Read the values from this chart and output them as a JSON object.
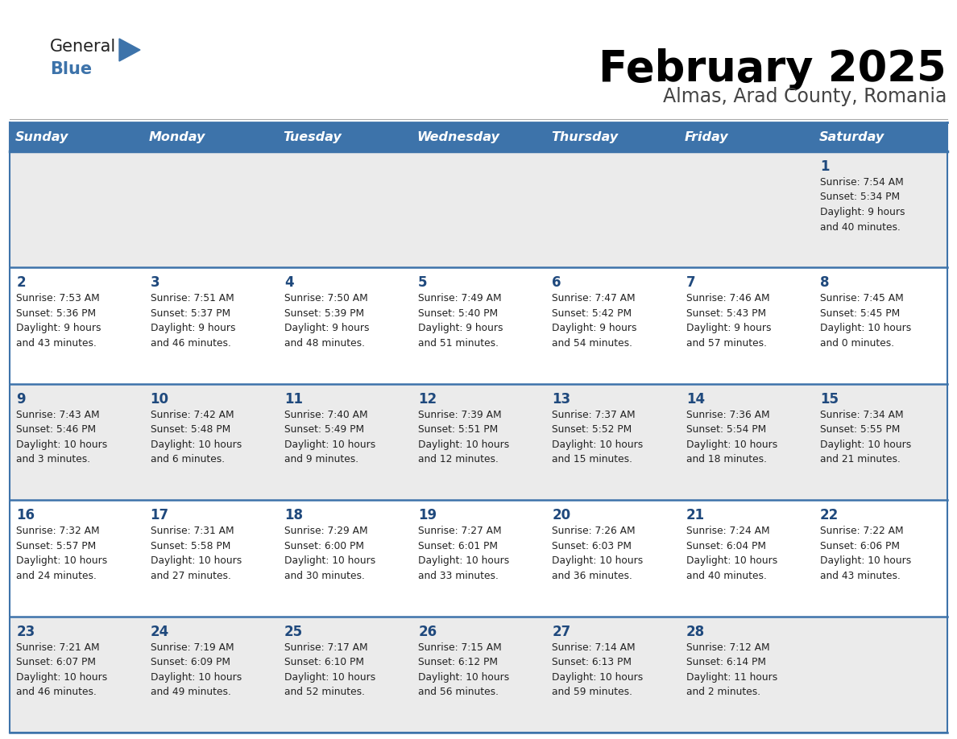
{
  "title": "February 2025",
  "subtitle": "Almas, Arad County, Romania",
  "header_bg": "#3D73AA",
  "header_text_color": "#FFFFFF",
  "day_names": [
    "Sunday",
    "Monday",
    "Tuesday",
    "Wednesday",
    "Thursday",
    "Friday",
    "Saturday"
  ],
  "row_bg_colors": [
    "#EBEBEB",
    "#FFFFFF",
    "#EBEBEB",
    "#FFFFFF",
    "#EBEBEB"
  ],
  "cell_border_color": "#3D73AA",
  "title_color": "#000000",
  "subtitle_color": "#444444",
  "day_number_color": "#1F497D",
  "info_color": "#222222",
  "logo_general_color": "#222222",
  "logo_blue_color": "#3D73AA",
  "weeks": [
    {
      "days": [
        {
          "date": null,
          "info": null
        },
        {
          "date": null,
          "info": null
        },
        {
          "date": null,
          "info": null
        },
        {
          "date": null,
          "info": null
        },
        {
          "date": null,
          "info": null
        },
        {
          "date": null,
          "info": null
        },
        {
          "date": 1,
          "info": "Sunrise: 7:54 AM\nSunset: 5:34 PM\nDaylight: 9 hours\nand 40 minutes."
        }
      ]
    },
    {
      "days": [
        {
          "date": 2,
          "info": "Sunrise: 7:53 AM\nSunset: 5:36 PM\nDaylight: 9 hours\nand 43 minutes."
        },
        {
          "date": 3,
          "info": "Sunrise: 7:51 AM\nSunset: 5:37 PM\nDaylight: 9 hours\nand 46 minutes."
        },
        {
          "date": 4,
          "info": "Sunrise: 7:50 AM\nSunset: 5:39 PM\nDaylight: 9 hours\nand 48 minutes."
        },
        {
          "date": 5,
          "info": "Sunrise: 7:49 AM\nSunset: 5:40 PM\nDaylight: 9 hours\nand 51 minutes."
        },
        {
          "date": 6,
          "info": "Sunrise: 7:47 AM\nSunset: 5:42 PM\nDaylight: 9 hours\nand 54 minutes."
        },
        {
          "date": 7,
          "info": "Sunrise: 7:46 AM\nSunset: 5:43 PM\nDaylight: 9 hours\nand 57 minutes."
        },
        {
          "date": 8,
          "info": "Sunrise: 7:45 AM\nSunset: 5:45 PM\nDaylight: 10 hours\nand 0 minutes."
        }
      ]
    },
    {
      "days": [
        {
          "date": 9,
          "info": "Sunrise: 7:43 AM\nSunset: 5:46 PM\nDaylight: 10 hours\nand 3 minutes."
        },
        {
          "date": 10,
          "info": "Sunrise: 7:42 AM\nSunset: 5:48 PM\nDaylight: 10 hours\nand 6 minutes."
        },
        {
          "date": 11,
          "info": "Sunrise: 7:40 AM\nSunset: 5:49 PM\nDaylight: 10 hours\nand 9 minutes."
        },
        {
          "date": 12,
          "info": "Sunrise: 7:39 AM\nSunset: 5:51 PM\nDaylight: 10 hours\nand 12 minutes."
        },
        {
          "date": 13,
          "info": "Sunrise: 7:37 AM\nSunset: 5:52 PM\nDaylight: 10 hours\nand 15 minutes."
        },
        {
          "date": 14,
          "info": "Sunrise: 7:36 AM\nSunset: 5:54 PM\nDaylight: 10 hours\nand 18 minutes."
        },
        {
          "date": 15,
          "info": "Sunrise: 7:34 AM\nSunset: 5:55 PM\nDaylight: 10 hours\nand 21 minutes."
        }
      ]
    },
    {
      "days": [
        {
          "date": 16,
          "info": "Sunrise: 7:32 AM\nSunset: 5:57 PM\nDaylight: 10 hours\nand 24 minutes."
        },
        {
          "date": 17,
          "info": "Sunrise: 7:31 AM\nSunset: 5:58 PM\nDaylight: 10 hours\nand 27 minutes."
        },
        {
          "date": 18,
          "info": "Sunrise: 7:29 AM\nSunset: 6:00 PM\nDaylight: 10 hours\nand 30 minutes."
        },
        {
          "date": 19,
          "info": "Sunrise: 7:27 AM\nSunset: 6:01 PM\nDaylight: 10 hours\nand 33 minutes."
        },
        {
          "date": 20,
          "info": "Sunrise: 7:26 AM\nSunset: 6:03 PM\nDaylight: 10 hours\nand 36 minutes."
        },
        {
          "date": 21,
          "info": "Sunrise: 7:24 AM\nSunset: 6:04 PM\nDaylight: 10 hours\nand 40 minutes."
        },
        {
          "date": 22,
          "info": "Sunrise: 7:22 AM\nSunset: 6:06 PM\nDaylight: 10 hours\nand 43 minutes."
        }
      ]
    },
    {
      "days": [
        {
          "date": 23,
          "info": "Sunrise: 7:21 AM\nSunset: 6:07 PM\nDaylight: 10 hours\nand 46 minutes."
        },
        {
          "date": 24,
          "info": "Sunrise: 7:19 AM\nSunset: 6:09 PM\nDaylight: 10 hours\nand 49 minutes."
        },
        {
          "date": 25,
          "info": "Sunrise: 7:17 AM\nSunset: 6:10 PM\nDaylight: 10 hours\nand 52 minutes."
        },
        {
          "date": 26,
          "info": "Sunrise: 7:15 AM\nSunset: 6:12 PM\nDaylight: 10 hours\nand 56 minutes."
        },
        {
          "date": 27,
          "info": "Sunrise: 7:14 AM\nSunset: 6:13 PM\nDaylight: 10 hours\nand 59 minutes."
        },
        {
          "date": 28,
          "info": "Sunrise: 7:12 AM\nSunset: 6:14 PM\nDaylight: 11 hours\nand 2 minutes."
        },
        {
          "date": null,
          "info": null
        }
      ]
    }
  ]
}
